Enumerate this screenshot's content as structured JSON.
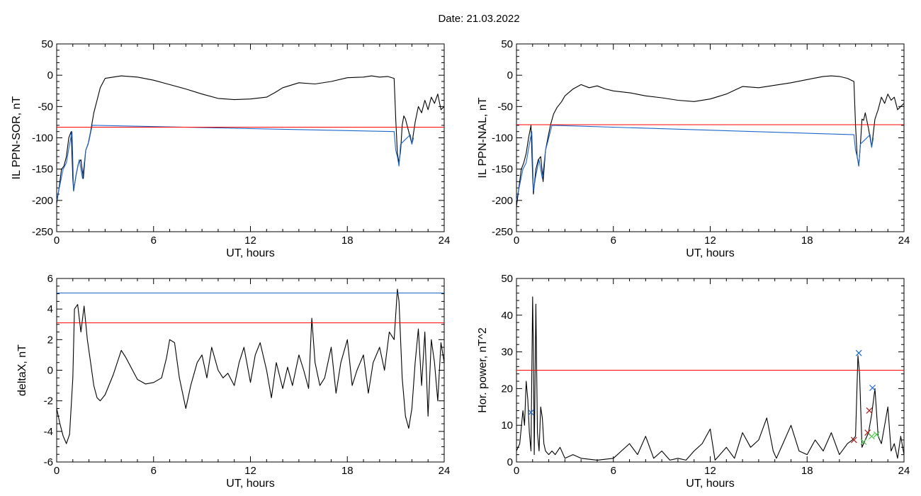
{
  "page_title": "Date:  21.03.2022",
  "chart_data": [
    {
      "type": "line",
      "xlabel": "UT, hours",
      "ylabel": "IL PPN-SOR, nT",
      "xlim": [
        0,
        24
      ],
      "ylim": [
        -250,
        50
      ],
      "xticks": [
        0,
        6,
        12,
        18,
        24
      ],
      "yticks": [
        -250,
        -200,
        -150,
        -100,
        -50,
        0,
        50
      ],
      "series": [
        {
          "color": "#000000",
          "x": [
            0,
            0.15,
            0.3,
            0.45,
            0.6,
            0.75,
            0.9,
            1.0,
            1.05,
            1.2,
            1.35,
            1.5,
            1.65,
            1.8,
            1.95,
            2.1,
            2.3,
            2.5,
            2.7,
            3.0,
            3.5,
            4.0,
            4.5,
            5.0,
            6.0,
            7.0,
            8.0,
            9.0,
            10.0,
            11.0,
            12.0,
            13.0,
            13.5,
            14.0,
            15.0,
            16.0,
            17.0,
            18.0,
            19.0,
            19.5,
            20.0,
            20.5,
            20.9,
            21.0,
            21.1,
            21.2,
            21.3,
            21.4,
            21.5,
            21.6,
            21.8,
            22.0,
            22.2,
            22.4,
            22.6,
            22.8,
            23.0,
            23.2,
            23.4,
            23.6,
            23.8,
            24.0
          ],
          "y": [
            -205,
            -180,
            -150,
            -145,
            -130,
            -100,
            -90,
            -165,
            -185,
            -160,
            -140,
            -135,
            -165,
            -120,
            -110,
            -90,
            -60,
            -40,
            -20,
            -5,
            -3,
            -1,
            -2,
            -3,
            -8,
            -15,
            -22,
            -30,
            -37,
            -39,
            -38,
            -35,
            -28,
            -20,
            -12,
            -14,
            -10,
            -4,
            -3,
            -1,
            -3,
            -2,
            -5,
            -70,
            -125,
            -140,
            -120,
            -80,
            -65,
            -70,
            -90,
            -110,
            -75,
            -50,
            -60,
            -40,
            -55,
            -35,
            -45,
            -30,
            -55,
            -50
          ]
        },
        {
          "color": "#1a66cc",
          "name": "",
          "x": [
            0,
            0.2,
            0.4,
            0.6,
            0.8,
            0.95,
            1.05,
            1.2,
            1.4,
            1.6,
            1.8,
            2.0,
            2.2,
            20.9,
            21.0,
            21.1,
            21.2,
            21.3,
            21.9,
            22.0,
            22.1
          ],
          "y": [
            -200,
            -175,
            -150,
            -140,
            -110,
            -90,
            -185,
            -160,
            -135,
            -165,
            -120,
            -105,
            -80,
            -90,
            -120,
            -130,
            -145,
            -110,
            -95,
            -110,
            -100
          ]
        }
      ],
      "threshold": {
        "y": -83,
        "color": "#ff0000"
      }
    },
    {
      "type": "line",
      "xlabel": "UT, hours",
      "ylabel": "IL PPN-NAL, nT",
      "xlim": [
        0,
        24
      ],
      "ylim": [
        -250,
        50
      ],
      "xticks": [
        0,
        6,
        12,
        18,
        24
      ],
      "yticks": [
        -250,
        -200,
        -150,
        -100,
        -50,
        0,
        50
      ],
      "series": [
        {
          "color": "#000000",
          "x": [
            0,
            0.15,
            0.3,
            0.45,
            0.6,
            0.75,
            0.9,
            1.0,
            1.05,
            1.2,
            1.35,
            1.5,
            1.65,
            1.8,
            1.95,
            2.1,
            2.3,
            2.5,
            2.8,
            3.0,
            3.5,
            4.0,
            4.5,
            5.0,
            5.5,
            6.0,
            7.0,
            8.0,
            9.0,
            10.0,
            11.0,
            12.0,
            13.0,
            13.5,
            14.0,
            15.0,
            16.0,
            17.0,
            18.0,
            19.0,
            19.5,
            20.0,
            20.5,
            20.9,
            21.0,
            21.1,
            21.2,
            21.3,
            21.4,
            21.5,
            21.6,
            21.8,
            22.0,
            22.2,
            22.4,
            22.6,
            22.8,
            23.0,
            23.2,
            23.4,
            23.6,
            23.8,
            24.0
          ],
          "y": [
            -210,
            -180,
            -150,
            -140,
            -125,
            -100,
            -80,
            -160,
            -190,
            -150,
            -135,
            -130,
            -170,
            -120,
            -100,
            -80,
            -62,
            -52,
            -42,
            -33,
            -22,
            -15,
            -20,
            -17,
            -22,
            -25,
            -28,
            -33,
            -36,
            -40,
            -42,
            -38,
            -30,
            -24,
            -18,
            -20,
            -16,
            -12,
            -7,
            -2,
            -1,
            -2,
            -5,
            -10,
            -80,
            -130,
            -145,
            -110,
            -70,
            -72,
            -60,
            -85,
            -115,
            -70,
            -55,
            -35,
            -45,
            -30,
            -40,
            -35,
            -55,
            -50,
            -45
          ]
        },
        {
          "color": "#1a66cc",
          "name": "",
          "x": [
            0,
            0.2,
            0.4,
            0.6,
            0.8,
            0.95,
            1.05,
            1.2,
            1.4,
            1.6,
            1.8,
            2.0,
            2.2,
            20.9,
            21.0,
            21.1,
            21.2,
            21.3,
            21.9,
            22.0,
            22.1
          ],
          "y": [
            -200,
            -175,
            -150,
            -140,
            -110,
            -90,
            -185,
            -160,
            -135,
            -165,
            -120,
            -100,
            -80,
            -95,
            -120,
            -130,
            -145,
            -110,
            -95,
            -115,
            -100
          ]
        }
      ],
      "threshold": {
        "y": -79,
        "color": "#ff0000"
      }
    },
    {
      "type": "line",
      "xlabel": "UT, hours",
      "ylabel": "deltaX, nT",
      "xlim": [
        0,
        24
      ],
      "ylim": [
        -6,
        6
      ],
      "xticks": [
        0,
        6,
        12,
        18,
        24
      ],
      "yticks": [
        -6,
        -4,
        -2,
        0,
        2,
        4,
        6
      ],
      "series": [
        {
          "color": "#000000",
          "x": [
            0,
            0.2,
            0.4,
            0.6,
            0.8,
            1.0,
            1.1,
            1.3,
            1.5,
            1.7,
            1.9,
            2.1,
            2.3,
            2.5,
            2.7,
            3.0,
            3.5,
            4.0,
            4.3,
            4.7,
            5.0,
            5.5,
            6.0,
            6.5,
            6.8,
            7.0,
            7.3,
            7.6,
            8.0,
            8.3,
            8.7,
            9.0,
            9.3,
            9.6,
            10.0,
            10.3,
            10.6,
            11.0,
            11.3,
            11.6,
            12.0,
            12.3,
            12.6,
            13.0,
            13.3,
            13.6,
            14.0,
            14.3,
            14.6,
            15.0,
            15.3,
            15.6,
            15.8,
            16.0,
            16.3,
            16.6,
            17.0,
            17.3,
            17.6,
            18.0,
            18.3,
            18.6,
            19.0,
            19.3,
            19.6,
            20.0,
            20.3,
            20.6,
            20.9,
            21.1,
            21.2,
            21.4,
            21.6,
            21.8,
            22.0,
            22.2,
            22.4,
            22.6,
            22.8,
            23.0,
            23.2,
            23.4,
            23.6,
            23.8,
            24.0
          ],
          "y": [
            -2.5,
            -3.5,
            -4.3,
            -4.8,
            -4.2,
            -0.5,
            4.0,
            4.3,
            2.5,
            4.2,
            2.0,
            0.5,
            -1.0,
            -1.8,
            -2.0,
            -1.6,
            -0.3,
            1.3,
            0.8,
            0.0,
            -0.6,
            -0.9,
            -0.8,
            -0.5,
            0.8,
            2.0,
            1.8,
            -0.5,
            -2.5,
            -1.0,
            0.5,
            1.0,
            -0.5,
            1.5,
            0.0,
            -0.5,
            -0.2,
            -1.0,
            0.5,
            1.5,
            -0.8,
            1.0,
            1.8,
            0.0,
            -1.8,
            0.5,
            -1.2,
            0.2,
            -1.0,
            1.0,
            0.0,
            -1.2,
            3.4,
            0.5,
            -1.0,
            -0.5,
            1.5,
            -1.5,
            0.5,
            2.0,
            -1.0,
            0.0,
            1.0,
            -1.5,
            0.5,
            1.5,
            0.0,
            2.5,
            2.0,
            5.3,
            4.5,
            -0.5,
            -3.0,
            -3.8,
            -2.5,
            0.5,
            2.7,
            -1.0,
            2.5,
            -3.0,
            2.0,
            0.5,
            -2.0,
            1.8,
            0.5
          ]
        }
      ],
      "thresholds": [
        {
          "y": 5.05,
          "color": "#1a66cc"
        },
        {
          "y": 3.1,
          "color": "#ff0000"
        }
      ]
    },
    {
      "type": "line",
      "xlabel": "UT, hours",
      "ylabel": "Hor. power, nT^2",
      "xlim": [
        0,
        24
      ],
      "ylim": [
        0,
        50
      ],
      "xticks": [
        0,
        6,
        12,
        18,
        24
      ],
      "yticks": [
        0,
        10,
        20,
        30,
        40,
        50
      ],
      "series": [
        {
          "color": "#000000",
          "x": [
            0,
            0.2,
            0.4,
            0.5,
            0.6,
            0.7,
            0.8,
            0.9,
            1.0,
            1.05,
            1.1,
            1.2,
            1.3,
            1.4,
            1.5,
            1.6,
            1.7,
            1.8,
            2.0,
            2.2,
            2.4,
            2.7,
            3.0,
            3.5,
            4.0,
            5.0,
            6.0,
            6.5,
            7.0,
            7.5,
            8.0,
            8.5,
            9.0,
            9.5,
            10.0,
            10.5,
            11.0,
            11.5,
            12.0,
            12.3,
            12.6,
            13.0,
            13.5,
            14.0,
            14.5,
            15.0,
            15.5,
            15.9,
            16.1,
            16.5,
            17.0,
            17.5,
            18.0,
            18.5,
            19.0,
            19.5,
            20.0,
            20.5,
            20.8,
            21.0,
            21.15,
            21.25,
            21.4,
            21.6,
            21.8,
            22.0,
            22.2,
            22.4,
            22.6,
            22.8,
            23.0,
            23.2,
            23.4,
            23.6,
            23.8,
            24.0
          ],
          "y": [
            3,
            5,
            14,
            10,
            22,
            17,
            8,
            3,
            45,
            30,
            2,
            43,
            8,
            3,
            15,
            12,
            5,
            3,
            2,
            3,
            2,
            4,
            1,
            2,
            1,
            0.5,
            1,
            3,
            5,
            2,
            7,
            1,
            3,
            0.5,
            1,
            0.5,
            3,
            5,
            9,
            0.5,
            2,
            4,
            1,
            8,
            4,
            6,
            12,
            3,
            1,
            5,
            10,
            3,
            2,
            6,
            3,
            8,
            2,
            5,
            6,
            7,
            29,
            24,
            4,
            6,
            8,
            13,
            20,
            7,
            5,
            10,
            15,
            3,
            5,
            1,
            7,
            2
          ]
        }
      ],
      "threshold": {
        "y": 25,
        "color": "#ff0000"
      },
      "markers": [
        {
          "x": 0.9,
          "y": 13.5,
          "color": "#1a66cc",
          "symbol": "x"
        },
        {
          "x": 21.2,
          "y": 29.7,
          "color": "#1a66cc",
          "symbol": "x"
        },
        {
          "x": 22.05,
          "y": 20.2,
          "color": "#1a66cc",
          "symbol": "x"
        },
        {
          "x": 20.9,
          "y": 6.0,
          "color": "#b21a1a",
          "symbol": "x"
        },
        {
          "x": 21.75,
          "y": 8.0,
          "color": "#b21a1a",
          "symbol": "x"
        },
        {
          "x": 21.85,
          "y": 14.0,
          "color": "#b21a1a",
          "symbol": "x"
        },
        {
          "x": 21.5,
          "y": 5.5,
          "color": "#44cc44",
          "symbol": "x"
        },
        {
          "x": 22.0,
          "y": 7.0,
          "color": "#44cc44",
          "symbol": "x"
        },
        {
          "x": 22.3,
          "y": 7.5,
          "color": "#44cc44",
          "symbol": "x"
        }
      ]
    }
  ]
}
